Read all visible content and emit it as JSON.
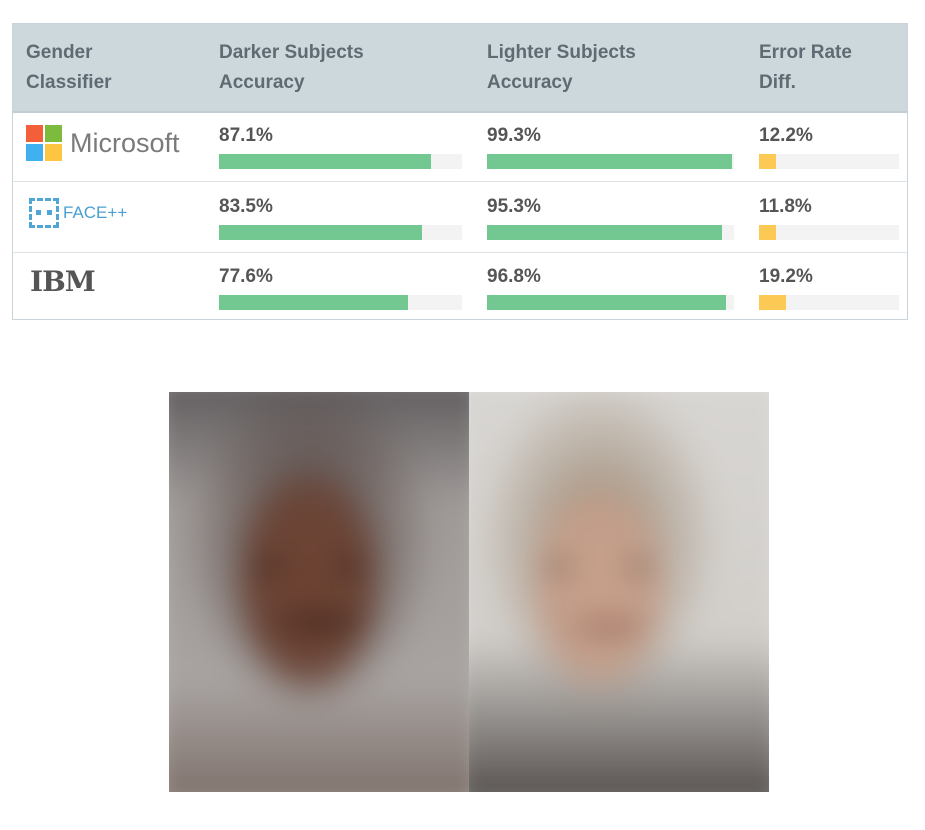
{
  "table": {
    "headers": [
      "Gender Classifier",
      "Darker Subjects Accuracy",
      "Lighter Subjects Accuracy",
      "Error Rate Diff."
    ],
    "header_lines": [
      [
        "Gender",
        "Classifier"
      ],
      [
        "Darker Subjects",
        "Accuracy"
      ],
      [
        "Lighter Subjects",
        "Accuracy"
      ],
      [
        "Error Rate",
        "Diff."
      ]
    ],
    "rows": [
      {
        "classifier": "Microsoft",
        "logo": "microsoft-logo",
        "darker": "87.1%",
        "darker_value": 87.1,
        "lighter": "99.3%",
        "lighter_value": 99.3,
        "diff": "12.2%",
        "diff_value": 12.2
      },
      {
        "classifier": "FACE++",
        "logo": "face-plus-plus-logo",
        "darker": "83.5%",
        "darker_value": 83.5,
        "lighter": "95.3%",
        "lighter_value": 95.3,
        "diff": "11.8%",
        "diff_value": 11.8
      },
      {
        "classifier": "IBM",
        "logo": "ibm-logo",
        "darker": "77.6%",
        "darker_value": 77.6,
        "lighter": "96.8%",
        "lighter_value": 96.8,
        "diff": "19.2%",
        "diff_value": 19.2
      }
    ],
    "colors": {
      "accuracy_bar": "#73c891",
      "diff_bar": "#fcc955",
      "header_bg": "#cdd8dd"
    }
  },
  "image": {
    "description_icon": "average-faces-image"
  }
}
